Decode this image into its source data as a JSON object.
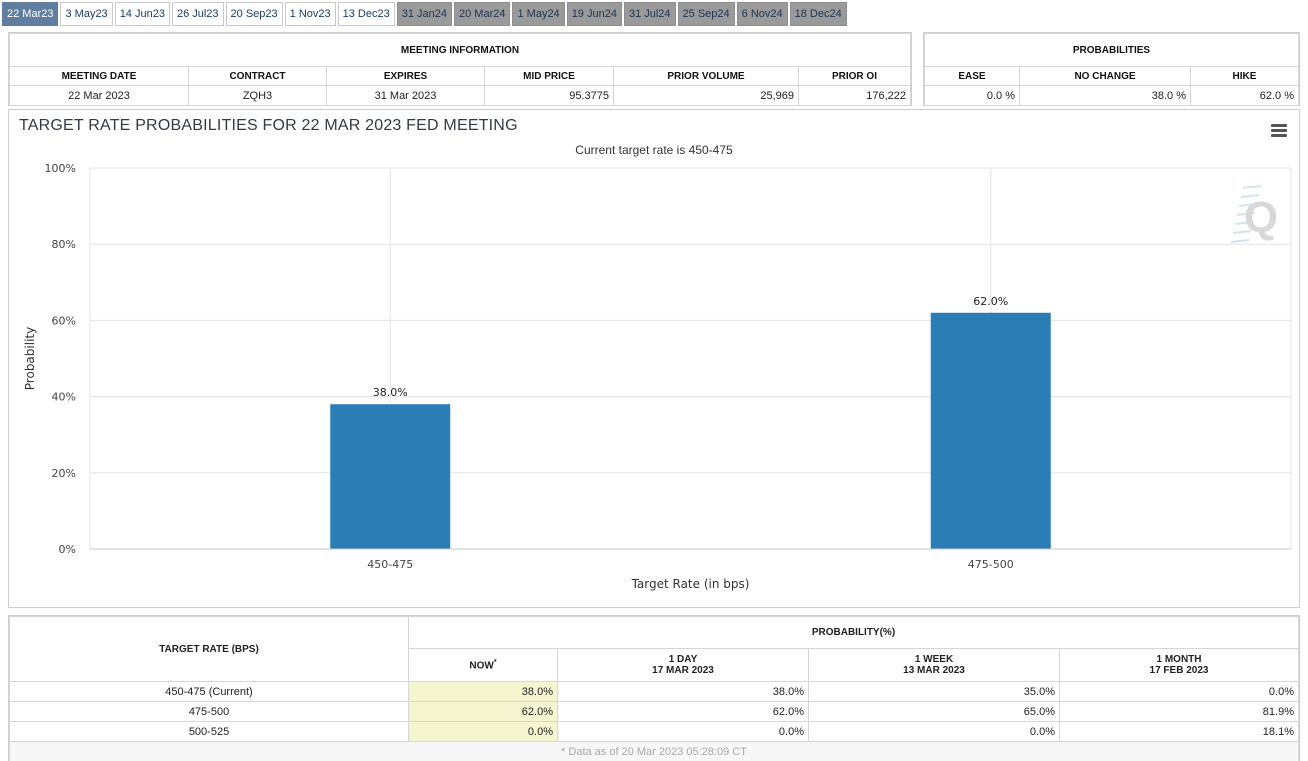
{
  "tabs": [
    {
      "label": "22 Mar23",
      "state": "active"
    },
    {
      "label": "3 May23",
      "state": "future"
    },
    {
      "label": "14 Jun23",
      "state": "future"
    },
    {
      "label": "26 Jul23",
      "state": "future"
    },
    {
      "label": "20 Sep23",
      "state": "future"
    },
    {
      "label": "1 Nov23",
      "state": "future"
    },
    {
      "label": "13 Dec23",
      "state": "future"
    },
    {
      "label": "31 Jan24",
      "state": "past"
    },
    {
      "label": "20 Mar24",
      "state": "past"
    },
    {
      "label": "1 May24",
      "state": "past"
    },
    {
      "label": "19 Jun24",
      "state": "past"
    },
    {
      "label": "31 Jul24",
      "state": "past"
    },
    {
      "label": "25 Sep24",
      "state": "past"
    },
    {
      "label": "6 Nov24",
      "state": "past"
    },
    {
      "label": "18 Dec24",
      "state": "past"
    }
  ],
  "meeting_info": {
    "title": "MEETING INFORMATION",
    "headers": [
      "MEETING DATE",
      "CONTRACT",
      "EXPIRES",
      "MID PRICE",
      "PRIOR VOLUME",
      "PRIOR OI"
    ],
    "values": [
      "22 Mar 2023",
      "ZQH3",
      "31 Mar 2023",
      "95.3775",
      "25,969",
      "176,222"
    ]
  },
  "probabilities": {
    "title": "PROBABILITIES",
    "headers": [
      "EASE",
      "NO CHANGE",
      "HIKE"
    ],
    "values": [
      "0.0 %",
      "38.0 %",
      "62.0 %"
    ]
  },
  "chart": {
    "title": "TARGET RATE PROBABILITIES FOR 22 MAR 2023 FED MEETING",
    "subtitle": "Current target rate is 450-475",
    "menu_icon": "hamburger-icon",
    "watermark_icon": "q-logo-icon"
  },
  "chart_data": {
    "type": "bar",
    "categories": [
      "450-475",
      "475-500"
    ],
    "values": [
      38.0,
      62.0
    ],
    "data_labels": [
      "38.0%",
      "62.0%"
    ],
    "xlabel": "Target Rate (in bps)",
    "ylabel": "Probability",
    "ylim": [
      0,
      100
    ],
    "yticks": [
      0,
      20,
      40,
      60,
      80,
      100
    ],
    "ytick_labels": [
      "0%",
      "20%",
      "40%",
      "60%",
      "80%",
      "100%"
    ],
    "grid": true,
    "bar_color": "#2b7db5"
  },
  "prob_table": {
    "col_header": "TARGET RATE (BPS)",
    "group_header": "PROBABILITY(%)",
    "sub_headers": [
      {
        "line1": "NOW",
        "line2": ""
      },
      {
        "line1": "1 DAY",
        "line2": "17 MAR 2023"
      },
      {
        "line1": "1 WEEK",
        "line2": "13 MAR 2023"
      },
      {
        "line1": "1 MONTH",
        "line2": "17 FEB 2023"
      }
    ],
    "now_marker": "*",
    "rows": [
      {
        "rate": "450-475 (Current)",
        "values": [
          "38.0%",
          "38.0%",
          "35.0%",
          "0.0%"
        ]
      },
      {
        "rate": "475-500",
        "values": [
          "62.0%",
          "62.0%",
          "65.0%",
          "81.9%"
        ]
      },
      {
        "rate": "500-525",
        "values": [
          "0.0%",
          "0.0%",
          "0.0%",
          "18.1%"
        ]
      }
    ],
    "footnote": "* Data as of 20 Mar 2023 05:28:09 CT"
  }
}
